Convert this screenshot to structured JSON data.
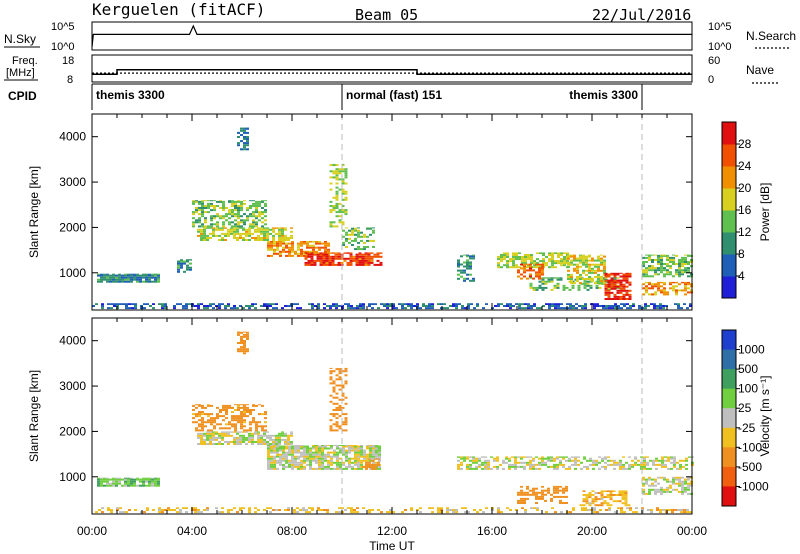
{
  "header": {
    "station_title": "Kerguelen (fitACF)",
    "beam": "Beam 05",
    "date": "22/Jul/2016"
  },
  "labels": {
    "nsky": "N.Sky",
    "nsearch": "N.Search",
    "freq_line1": "Freq.",
    "freq_line2": "[MHz]",
    "nave": "Nave",
    "cpid": "CPID",
    "range_axis": "Slant Range [km]",
    "time_axis": "Time UT",
    "power_axis": "Power [dB]",
    "velocity_axis": "Velocity [m s⁻¹]"
  },
  "cpid_segments": [
    {
      "label": "themis 3300",
      "start_h": 0,
      "end_h": 10
    },
    {
      "label": "normal (fast) 151",
      "start_h": 10,
      "end_h": 22
    },
    {
      "label": "themis 3300",
      "start_h": 22,
      "end_h": 24
    }
  ],
  "colors": {
    "power_scale": [
      "#1f1fd8",
      "#1f5fb8",
      "#2f8f6f",
      "#5fbf4f",
      "#d8d020",
      "#f09000",
      "#f05000",
      "#e01010"
    ],
    "velocity_scale": [
      "#1f3fcf",
      "#2f6fa8",
      "#3f9f5f",
      "#6fcf3f",
      "#bfbfbf",
      "#f0c020",
      "#f09020",
      "#f06010",
      "#e01010"
    ],
    "dashed_marker": "#bbbbbb"
  },
  "chart_data": [
    {
      "type": "line",
      "title": "Kerguelen (fitACF) Beam 05 22/Jul/2016",
      "panel": "noise",
      "ylabel": "N.Sky",
      "ylabel_right": "N.Search",
      "y_ticks_left": [
        "10^5",
        "10^0"
      ],
      "y_ticks_right": [
        "10^5",
        "10^0"
      ],
      "series": [
        {
          "name": "N.Sky",
          "x": [
            0,
            0.05,
            3.9,
            4.05,
            4.2,
            24
          ],
          "y": [
            1,
            1000,
            1000,
            100000,
            1000,
            1000
          ]
        }
      ],
      "xlim": [
        0,
        24
      ]
    },
    {
      "type": "line",
      "panel": "frequency",
      "ylabel": "Freq. [MHz]",
      "ylabel_right": "Nave",
      "y_ticks_left": [
        8,
        18
      ],
      "y_ticks_right": [
        0,
        60
      ],
      "series": [
        {
          "name": "Freq.",
          "x": [
            0,
            1,
            1,
            13,
            13,
            24
          ],
          "y": [
            10.5,
            10.5,
            12.5,
            12.5,
            10.5,
            10.5
          ]
        },
        {
          "name": "Nave",
          "x": [
            0,
            24
          ],
          "y": [
            18,
            18
          ]
        }
      ],
      "xlim": [
        0,
        24
      ]
    },
    {
      "type": "heatmap",
      "panel": "power",
      "xlabel": "",
      "ylabel": "Slant Range [km]",
      "colorbar_label": "Power [dB]",
      "colorbar_ticks": [
        4,
        8,
        12,
        16,
        20,
        24,
        28
      ],
      "x_ticks": [
        "00:00",
        "04:00",
        "08:00",
        "12:00",
        "16:00",
        "20:00",
        "00:00"
      ],
      "y_ticks": [
        1000,
        2000,
        3000,
        4000
      ],
      "xlim": [
        0,
        24
      ],
      "ylim": [
        180,
        4500
      ],
      "dashed_lines_h": [
        10,
        22
      ],
      "regions": [
        {
          "t0": 0.0,
          "t1": 24.0,
          "r0": 200,
          "r1": 330,
          "db": 6,
          "density": 0.55
        },
        {
          "t0": 0.2,
          "t1": 2.7,
          "r0": 780,
          "r1": 980,
          "db": 9,
          "density": 0.9
        },
        {
          "t0": 3.4,
          "t1": 4.0,
          "r0": 1000,
          "r1": 1300,
          "db": 10,
          "density": 0.6
        },
        {
          "t0": 4.0,
          "t1": 7.0,
          "r0": 2000,
          "r1": 2600,
          "db": 14,
          "density": 0.6
        },
        {
          "t0": 4.2,
          "t1": 8.0,
          "r0": 1700,
          "r1": 2000,
          "db": 17,
          "density": 0.65
        },
        {
          "t0": 7.0,
          "t1": 9.5,
          "r0": 1350,
          "r1": 1700,
          "db": 22,
          "density": 0.75
        },
        {
          "t0": 8.5,
          "t1": 11.5,
          "r0": 1150,
          "r1": 1450,
          "db": 27,
          "density": 0.85
        },
        {
          "t0": 9.5,
          "t1": 10.2,
          "r0": 2000,
          "r1": 3400,
          "db": 16,
          "density": 0.45
        },
        {
          "t0": 5.8,
          "t1": 6.2,
          "r0": 3700,
          "r1": 4200,
          "db": 8,
          "density": 0.5
        },
        {
          "t0": 10.0,
          "t1": 11.3,
          "r0": 1500,
          "r1": 2000,
          "db": 14,
          "density": 0.4
        },
        {
          "t0": 14.6,
          "t1": 15.3,
          "r0": 800,
          "r1": 1400,
          "db": 10,
          "density": 0.5
        },
        {
          "t0": 16.2,
          "t1": 19.0,
          "r0": 1100,
          "r1": 1450,
          "db": 16,
          "density": 0.65
        },
        {
          "t0": 17.0,
          "t1": 18.0,
          "r0": 850,
          "r1": 1200,
          "db": 25,
          "density": 0.55
        },
        {
          "t0": 17.5,
          "t1": 21.0,
          "r0": 600,
          "r1": 900,
          "db": 14,
          "density": 0.45
        },
        {
          "t0": 19.0,
          "t1": 20.5,
          "r0": 750,
          "r1": 1400,
          "db": 18,
          "density": 0.6
        },
        {
          "t0": 20.5,
          "t1": 21.5,
          "r0": 400,
          "r1": 1000,
          "db": 28,
          "density": 0.75
        },
        {
          "t0": 22.0,
          "t1": 24.0,
          "r0": 900,
          "r1": 1400,
          "db": 14,
          "density": 0.6
        },
        {
          "t0": 22.0,
          "t1": 24.0,
          "r0": 500,
          "r1": 800,
          "db": 22,
          "density": 0.55
        }
      ]
    },
    {
      "type": "heatmap",
      "panel": "velocity",
      "xlabel": "Time UT",
      "ylabel": "Slant Range [km]",
      "colorbar_label": "Velocity [m s⁻¹]",
      "colorbar_ticks": [
        1000,
        500,
        100,
        25,
        -25,
        -100,
        -500,
        -1000
      ],
      "x_ticks": [
        "00:00",
        "04:00",
        "08:00",
        "12:00",
        "16:00",
        "20:00",
        "00:00"
      ],
      "y_ticks": [
        1000,
        2000,
        3000,
        4000
      ],
      "xlim": [
        0,
        24
      ],
      "ylim": [
        180,
        4500
      ],
      "dashed_lines_h": [
        10,
        22
      ],
      "regions": [
        {
          "t0": 0.0,
          "t1": 24.0,
          "r0": 200,
          "r1": 330,
          "v": -60,
          "density": 0.35
        },
        {
          "t0": 0.2,
          "t1": 2.7,
          "r0": 780,
          "r1": 980,
          "v": 60,
          "density": 0.85
        },
        {
          "t0": 4.0,
          "t1": 7.0,
          "r0": 2000,
          "r1": 2600,
          "v": -150,
          "density": 0.45
        },
        {
          "t0": 4.2,
          "t1": 8.0,
          "r0": 1700,
          "r1": 2000,
          "v": 0,
          "density": 0.7
        },
        {
          "t0": 7.0,
          "t1": 11.5,
          "r0": 1150,
          "r1": 1700,
          "v": 0,
          "density": 0.8
        },
        {
          "t0": 9.5,
          "t1": 10.2,
          "r0": 2000,
          "r1": 3400,
          "v": -300,
          "density": 0.45
        },
        {
          "t0": 5.8,
          "t1": 6.2,
          "r0": 3700,
          "r1": 4200,
          "v": -300,
          "density": 0.5
        },
        {
          "t0": 10.8,
          "t1": 11.4,
          "r0": 1150,
          "r1": 1400,
          "v": -250,
          "density": 0.6
        },
        {
          "t0": 14.6,
          "t1": 24.0,
          "r0": 1150,
          "r1": 1450,
          "v": 0,
          "density": 0.55
        },
        {
          "t0": 17.0,
          "t1": 19.0,
          "r0": 400,
          "r1": 800,
          "v": -300,
          "density": 0.5
        },
        {
          "t0": 19.5,
          "t1": 21.5,
          "r0": 350,
          "r1": 700,
          "v": -80,
          "density": 0.55
        },
        {
          "t0": 22.0,
          "t1": 24.0,
          "r0": 600,
          "r1": 1000,
          "v": 0,
          "density": 0.55
        }
      ]
    }
  ]
}
